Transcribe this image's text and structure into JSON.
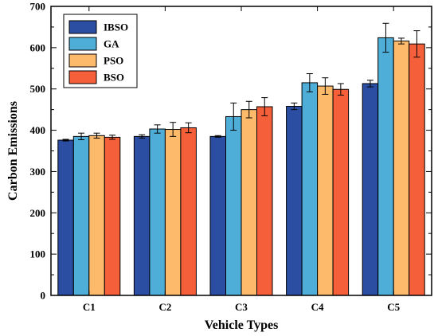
{
  "chart_data": {
    "type": "bar",
    "title": "",
    "xlabel": "Vehicle Types",
    "ylabel": "Carbon Emissions",
    "categories": [
      "C1",
      "C2",
      "C3",
      "C4",
      "C5"
    ],
    "ylim": [
      0,
      700
    ],
    "yticks": [
      0,
      100,
      200,
      300,
      400,
      500,
      600,
      700
    ],
    "yticklabels": [
      "0",
      "100",
      "200",
      "300",
      "400",
      "500",
      "600",
      "700"
    ],
    "grid": false,
    "legend_position": "top-left",
    "series": [
      {
        "name": "IBSO",
        "color": "#2b4ea2",
        "values": [
          376,
          385,
          385,
          458,
          513
        ],
        "errors": [
          2,
          4,
          2,
          8,
          8
        ]
      },
      {
        "name": "GA",
        "color": "#4eaed8",
        "values": [
          385,
          403,
          433,
          515,
          624
        ],
        "errors": [
          8,
          10,
          33,
          22,
          35
        ]
      },
      {
        "name": "PSO",
        "color": "#fdba6b",
        "values": [
          387,
          402,
          450,
          507,
          616
        ],
        "errors": [
          6,
          17,
          20,
          20,
          7
        ]
      },
      {
        "name": "BSO",
        "color": "#f5603a",
        "values": [
          383,
          406,
          457,
          499,
          609
        ],
        "errors": [
          5,
          12,
          22,
          14,
          32
        ]
      }
    ]
  }
}
